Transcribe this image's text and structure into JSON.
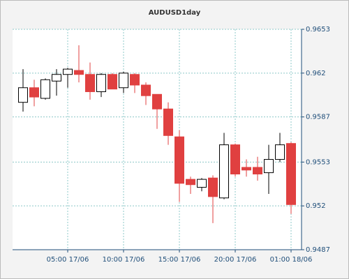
{
  "chart_data": {
    "type": "candlestick",
    "title": "AUDUSD1day",
    "categories": [
      null,
      null,
      null,
      null,
      "05:00 17/06",
      null,
      null,
      null,
      null,
      "10:00 17/06",
      null,
      null,
      null,
      null,
      "15:00 17/06",
      null,
      null,
      null,
      null,
      "20:00 17/06",
      null,
      null,
      null,
      null,
      "01:00 18/06"
    ],
    "open": [
      0.9598,
      0.9609,
      0.9601,
      0.9614,
      0.9619,
      0.9622,
      0.9619,
      0.9606,
      0.9619,
      0.9609,
      0.9619,
      0.9611,
      0.9604,
      0.9593,
      0.9572,
      0.954,
      0.9534,
      0.9541,
      0.9526,
      0.9566,
      0.9549,
      0.9549,
      0.9545,
      0.9555,
      0.9567
    ],
    "high": [
      0.9623,
      0.9615,
      0.9616,
      0.9623,
      0.9624,
      0.9641,
      0.9628,
      0.962,
      0.962,
      0.9621,
      0.962,
      0.9613,
      0.9604,
      0.9598,
      0.9577,
      0.9542,
      0.9541,
      0.9543,
      0.9575,
      0.9567,
      0.9555,
      0.9557,
      0.9566,
      0.9575,
      0.9568
    ],
    "low": [
      0.9591,
      0.9595,
      0.96,
      0.9603,
      0.9609,
      0.9613,
      0.96,
      0.9602,
      0.9608,
      0.9605,
      0.9605,
      0.9596,
      0.9578,
      0.9566,
      0.9523,
      0.9529,
      0.9531,
      0.9507,
      0.9525,
      0.9542,
      0.9542,
      0.9539,
      0.9529,
      0.9553,
      0.9514
    ],
    "close": [
      0.9609,
      0.9602,
      0.9615,
      0.9619,
      0.9623,
      0.9619,
      0.9606,
      0.9619,
      0.9608,
      0.962,
      0.9611,
      0.9603,
      0.9593,
      0.9573,
      0.9537,
      0.9536,
      0.954,
      0.9527,
      0.9566,
      0.9544,
      0.9547,
      0.9544,
      0.9555,
      0.9566,
      0.9521
    ],
    "up_color": "#ffffff",
    "down_color": "#e04040",
    "ylim": [
      0.9487,
      0.9653
    ],
    "yticks": [
      0.9653,
      0.962,
      0.9587,
      0.9553,
      0.952,
      0.9487
    ],
    "grid": true
  }
}
